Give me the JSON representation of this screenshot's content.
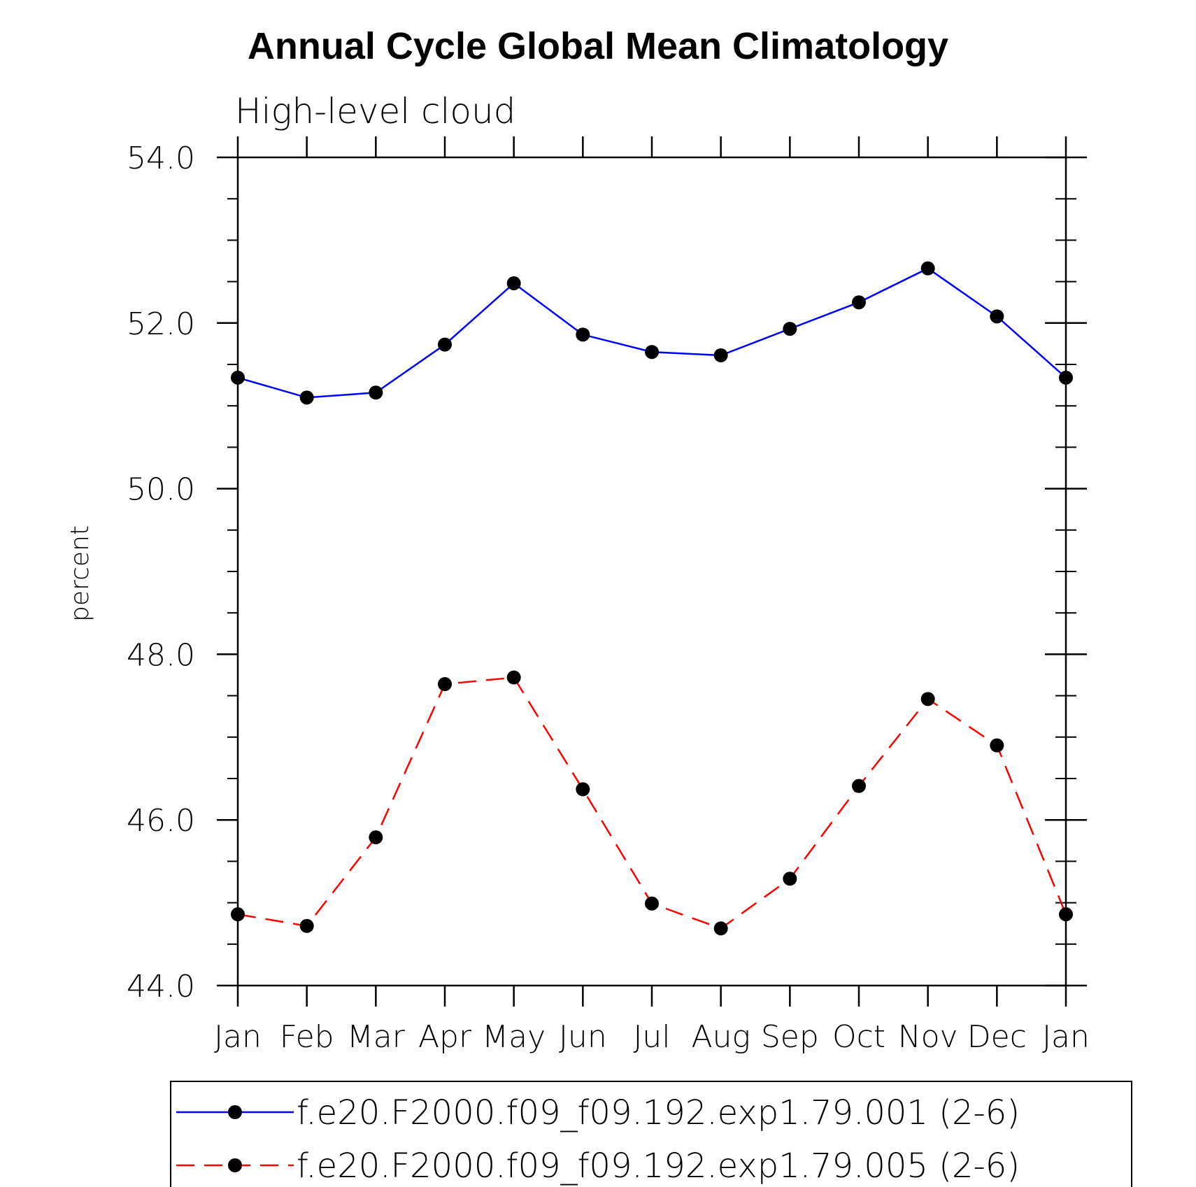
{
  "chart_data": {
    "type": "line",
    "title": "Annual Cycle Global Mean Climatology",
    "subtitle": "High-level cloud",
    "xlabel": "",
    "ylabel": "percent",
    "categories": [
      "Jan",
      "Feb",
      "Mar",
      "Apr",
      "May",
      "Jun",
      "Jul",
      "Aug",
      "Sep",
      "Oct",
      "Nov",
      "Dec",
      "Jan"
    ],
    "ylim": [
      44.0,
      54.0
    ],
    "y_major_ticks": [
      44.0,
      46.0,
      48.0,
      50.0,
      52.0,
      54.0
    ],
    "y_major_tick_labels": [
      "44.0",
      "46.0",
      "48.0",
      "50.0",
      "52.0",
      "54.0"
    ],
    "y_minor_step": 0.5,
    "grid": false,
    "legend_position": "bottom",
    "series": [
      {
        "name": "f.e20.F2000.f09_f09.192.exp1.79.001 (2-6)",
        "color": "#0000ff",
        "line_style": "solid",
        "marker": "filled-circle",
        "values": [
          51.34,
          51.1,
          51.16,
          51.74,
          52.48,
          51.86,
          51.65,
          51.61,
          51.93,
          52.25,
          52.66,
          52.08,
          51.34
        ]
      },
      {
        "name": "f.e20.F2000.f09_f09.192.exp1.79.005 (2-6)",
        "color": "#ff0000",
        "line_style": "dashed",
        "marker": "filled-circle",
        "values": [
          44.86,
          44.72,
          45.79,
          47.64,
          47.72,
          46.37,
          44.99,
          44.69,
          45.29,
          46.41,
          47.46,
          46.9,
          44.86
        ]
      }
    ]
  }
}
